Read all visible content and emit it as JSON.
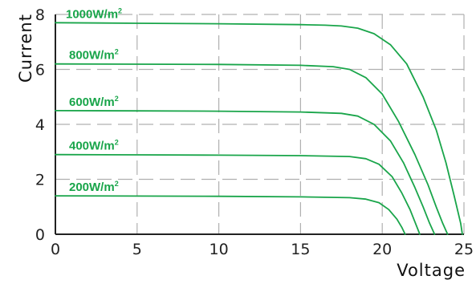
{
  "chart_data": {
    "type": "line",
    "title": "",
    "xlabel": "Voltage",
    "ylabel": "Current",
    "xlim": [
      0,
      25
    ],
    "ylim": [
      0,
      8
    ],
    "xticks": [
      0,
      5,
      10,
      15,
      20,
      25
    ],
    "yticks": [
      0,
      2,
      4,
      6,
      8
    ],
    "grid": true,
    "legend": "inline-labels",
    "colors": {
      "series": "#19a54a",
      "grid": "#b0b0b0",
      "axis": "#222222"
    },
    "series": [
      {
        "name": "1000W/m",
        "name_sup": "2",
        "x": [
          0,
          5,
          10,
          15,
          16.5,
          17.5,
          18.5,
          19.5,
          20.5,
          21.5,
          22.5,
          23.3,
          23.9,
          24.4,
          24.8,
          24.9
        ],
        "y": [
          7.7,
          7.68,
          7.66,
          7.63,
          7.61,
          7.58,
          7.5,
          7.3,
          6.9,
          6.2,
          5.0,
          3.8,
          2.6,
          1.4,
          0.4,
          0
        ]
      },
      {
        "name": "800W/m",
        "name_sup": "2",
        "x": [
          0,
          5,
          10,
          15,
          17,
          18,
          19,
          20,
          21,
          22,
          22.8,
          23.3,
          23.7,
          24.0
        ],
        "y": [
          6.2,
          6.19,
          6.18,
          6.15,
          6.1,
          6.0,
          5.7,
          5.1,
          4.1,
          2.9,
          1.8,
          1.0,
          0.4,
          0
        ]
      },
      {
        "name": "600W/m",
        "name_sup": "2",
        "x": [
          0,
          5,
          10,
          15,
          17.5,
          18.5,
          19.5,
          20.5,
          21.3,
          22.0,
          22.5,
          22.9,
          23.2
        ],
        "y": [
          4.5,
          4.49,
          4.48,
          4.45,
          4.4,
          4.3,
          4.0,
          3.4,
          2.6,
          1.7,
          1.0,
          0.4,
          0
        ]
      },
      {
        "name": "400W/m",
        "name_sup": "2",
        "x": [
          0,
          5,
          10,
          15,
          18,
          19,
          19.8,
          20.6,
          21.2,
          21.7,
          22.0,
          22.3
        ],
        "y": [
          2.9,
          2.89,
          2.88,
          2.86,
          2.83,
          2.75,
          2.55,
          2.1,
          1.5,
          0.9,
          0.45,
          0
        ]
      },
      {
        "name": "200W/m",
        "name_sup": "2",
        "x": [
          0,
          5,
          10,
          15,
          18,
          19,
          19.8,
          20.4,
          20.9,
          21.2,
          21.4
        ],
        "y": [
          1.4,
          1.39,
          1.38,
          1.36,
          1.33,
          1.28,
          1.15,
          0.9,
          0.55,
          0.25,
          0
        ]
      }
    ]
  }
}
